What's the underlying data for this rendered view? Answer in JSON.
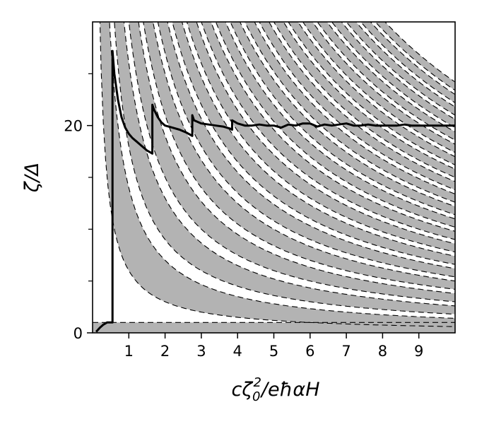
{
  "chart_data": {
    "type": "line",
    "title": "",
    "xlabel_parts": {
      "base": "cζ",
      "sub": "0",
      "sup": "2",
      "rest": "/eħαH"
    },
    "ylabel": "ζ/Δ",
    "xlim": [
      0,
      10
    ],
    "ylim": [
      0,
      30
    ],
    "xticks": [
      1,
      2,
      3,
      4,
      5,
      6,
      7,
      8,
      9
    ],
    "xtick_labels": [
      "1",
      "2",
      "3",
      "4",
      "5",
      "6",
      "7",
      "8",
      "9"
    ],
    "yticks_major": [
      0,
      20
    ],
    "ytick_labels": [
      "0",
      "20"
    ],
    "yticks_minor": [
      5,
      10,
      15,
      25
    ],
    "grid": false,
    "legend": "none",
    "colors": {
      "band": "#b3b3b3",
      "curve": "#000000",
      "dashed": "#000000"
    },
    "bottom_band": {
      "y0": 0,
      "y1": 1,
      "dashed_y": 1
    },
    "band_families": {
      "description_note": "shaded bands between n/x and (n+1)/x in units of y*x",
      "k_lower": [
        6,
        18,
        30,
        42,
        54,
        66,
        78,
        90,
        102,
        114,
        126,
        138,
        150,
        162,
        174,
        186,
        198,
        210,
        222,
        234
      ],
      "k_upper": [
        14,
        26,
        38,
        50,
        62,
        74,
        86,
        98,
        110,
        122,
        134,
        146,
        158,
        170,
        182,
        194,
        206,
        218,
        230,
        242
      ]
    },
    "series": [
      {
        "x": [
          0.1,
          0.2,
          0.3,
          0.4,
          0.5,
          0.55,
          0.55,
          0.6,
          0.7,
          0.8,
          0.9,
          1.0,
          1.1,
          1.2,
          1.3,
          1.4,
          1.5,
          1.6,
          1.65,
          1.65,
          1.7,
          1.8,
          1.9,
          2.0,
          2.2,
          2.4,
          2.6,
          2.75,
          2.75,
          2.8,
          3.0,
          3.2,
          3.4,
          3.6,
          3.8,
          3.85,
          3.85,
          4.0,
          4.2,
          4.4,
          4.6,
          4.8,
          5.0,
          5.2,
          5.4,
          5.6,
          5.8,
          6.0,
          6.2,
          6.4,
          6.6,
          6.8,
          7.0,
          7.2,
          7.4,
          7.6,
          7.8,
          8.0,
          8.2,
          8.4,
          8.6,
          8.8,
          9.0,
          9.2,
          9.4,
          9.6,
          9.8,
          10.0
        ],
        "y": [
          0.1,
          0.5,
          0.8,
          1.0,
          1.0,
          1.0,
          27.2,
          25.0,
          22.5,
          20.8,
          19.8,
          19.2,
          18.8,
          18.5,
          18.2,
          17.9,
          17.6,
          17.4,
          17.3,
          22.0,
          21.5,
          20.8,
          20.3,
          20.0,
          19.8,
          19.6,
          19.3,
          19.0,
          21.0,
          20.5,
          20.2,
          20.1,
          20.0,
          19.9,
          19.7,
          19.6,
          20.5,
          20.2,
          20.0,
          20.0,
          20.1,
          20.0,
          20.0,
          19.8,
          20.1,
          20.0,
          20.2,
          20.2,
          19.9,
          20.1,
          20.0,
          20.1,
          20.2,
          20.0,
          20.0,
          20.1,
          20.0,
          20.0,
          20.0,
          20.0,
          20.1,
          20.0,
          20.0,
          20.0,
          20.0,
          20.0,
          20.0,
          20.0
        ]
      }
    ]
  }
}
